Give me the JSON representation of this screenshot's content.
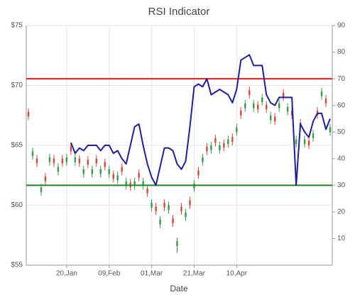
{
  "chart_data": {
    "type": "candlestick",
    "title": "RSI Indicator",
    "x_label": "Date",
    "categories": [
      null,
      null,
      null,
      null,
      null,
      null,
      null,
      null,
      null,
      "20,Jan",
      null,
      null,
      null,
      null,
      null,
      null,
      null,
      null,
      null,
      "09,Feb",
      null,
      null,
      null,
      null,
      null,
      null,
      null,
      null,
      null,
      "01,Mar",
      null,
      null,
      null,
      null,
      null,
      null,
      null,
      null,
      null,
      "21,Mar",
      null,
      null,
      null,
      null,
      null,
      null,
      null,
      null,
      null,
      "10,Apr",
      null,
      null,
      null,
      null,
      null,
      null,
      null,
      null,
      null,
      null,
      null,
      null,
      null,
      null,
      null,
      null,
      null,
      null,
      null,
      null,
      null,
      null
    ],
    "open": [
      67.8,
      64.1,
      63.9,
      61.1,
      62.4,
      63.6,
      63.9,
      62.8,
      63.9,
      63.6,
      64.9,
      63.6,
      63.9,
      62.6,
      63.8,
      62.6,
      63.9,
      62.6,
      63.6,
      62.6,
      62.6,
      62.1,
      63.2,
      61.6,
      61.9,
      61.6,
      62.7,
      61.6,
      61.4,
      59.8,
      59.9,
      58.4,
      60.2,
      59.6,
      58.9,
      56.6,
      59.9,
      59,
      60.4,
      61.4,
      62.9,
      63.6,
      64.9,
      64.6,
      65.6,
      64.6,
      65.2,
      65.1,
      65.7,
      66.1,
      67.9,
      68.1,
      69.6,
      68.1,
      68.4,
      68.6,
      68.4,
      67.1,
      67.4,
      68.1,
      69.4,
      67.8,
      67.9,
      65.1,
      66.9,
      65.1,
      65.4,
      65.6,
      67.9,
      69.1,
      68.9,
      66.1
    ],
    "high": [
      68.1,
      64.8,
      64.2,
      61.8,
      62.7,
      64.3,
      64.2,
      63.5,
      64.2,
      64.3,
      65.2,
      64.3,
      64.2,
      63.3,
      64.1,
      63.3,
      64.2,
      63.3,
      63.9,
      63.3,
      62.9,
      62.8,
      63.5,
      62.3,
      62.2,
      62.3,
      63,
      62.3,
      61.7,
      60.5,
      60.2,
      59.1,
      60.5,
      60.3,
      59.2,
      57.3,
      60.2,
      59.7,
      60.7,
      62.1,
      63.2,
      64.3,
      65.2,
      65.3,
      65.9,
      65.3,
      65.5,
      65.8,
      66,
      66.8,
      68.2,
      68.8,
      69.9,
      68.8,
      68.7,
      69.3,
      68.7,
      67.8,
      67.7,
      68.8,
      69.7,
      68.5,
      68.2,
      65.8,
      67.2,
      65.8,
      65.7,
      66.3,
      68.2,
      69.8,
      69.2,
      66.8
    ],
    "low": [
      67.1,
      63.8,
      63.2,
      60.8,
      61.7,
      63.3,
      63.2,
      62.5,
      63.2,
      63.3,
      64.2,
      63.3,
      63.2,
      62.3,
      63.1,
      62.3,
      63.2,
      62.3,
      62.9,
      62.3,
      61.9,
      61.8,
      62.5,
      61.3,
      61.2,
      61.3,
      62,
      61.3,
      60.7,
      59.5,
      59.2,
      58.1,
      59.5,
      59.3,
      58.2,
      56,
      59.2,
      58.7,
      59.7,
      61.1,
      62.2,
      63.3,
      64.2,
      64.3,
      64.9,
      64.3,
      64.5,
      64.8,
      65,
      65.8,
      67.2,
      67.8,
      68.9,
      67.8,
      67.7,
      68.3,
      67.7,
      66.8,
      66.7,
      67.8,
      68.7,
      67.5,
      67.2,
      64.8,
      66.2,
      64.8,
      64.7,
      65.3,
      67.2,
      68.8,
      68.2,
      65.8
    ],
    "close": [
      67.4,
      64.5,
      63.5,
      61.5,
      62,
      64,
      63.5,
      63.2,
      63.5,
      64,
      64.5,
      64,
      63.5,
      63,
      63.4,
      63,
      63.5,
      63,
      63.2,
      63,
      62.2,
      62.5,
      62.8,
      62,
      61.5,
      62,
      62.3,
      62,
      61,
      60.2,
      59.5,
      58.8,
      59.8,
      60,
      58.5,
      57,
      59.5,
      59.4,
      60,
      61.8,
      62.5,
      64,
      64.5,
      65,
      65.2,
      65,
      64.8,
      65.5,
      65.3,
      66.5,
      67.5,
      68.5,
      69.2,
      68.5,
      68,
      69,
      68,
      67.5,
      67,
      68.5,
      69,
      68.2,
      67.5,
      65.5,
      66.5,
      65.5,
      65,
      66,
      67.5,
      69.5,
      68.5,
      66.5
    ],
    "up_color": "#3a9a4a",
    "down_color": "#d24a3c",
    "rsi": {
      "color": "#1f1f9a",
      "axis": "y2",
      "values": [
        null,
        null,
        null,
        null,
        null,
        null,
        null,
        null,
        null,
        null,
        46,
        42,
        44,
        43,
        45,
        45,
        45,
        43,
        45,
        45,
        42,
        43,
        40,
        38,
        45,
        52,
        53,
        45,
        38,
        33,
        30,
        37,
        44,
        44,
        43,
        38,
        36,
        39,
        52,
        67,
        68,
        67,
        70,
        64,
        65,
        66,
        65,
        64,
        61,
        66,
        77,
        78,
        79,
        75,
        75,
        75,
        64,
        61,
        60,
        63,
        63,
        63,
        63,
        30,
        53,
        50,
        48,
        54,
        57,
        57,
        51,
        55
      ]
    },
    "reference_lines": [
      {
        "value": 70,
        "color": "#e01b1b",
        "axis": "y2"
      },
      {
        "value": 30,
        "color": "#1e8a1e",
        "axis": "y2"
      }
    ],
    "ylim": [
      55,
      75
    ],
    "yticks": [
      {
        "value": 55,
        "label": "$55"
      },
      {
        "value": 60,
        "label": "$60"
      },
      {
        "value": 65,
        "label": "$65"
      },
      {
        "value": 70,
        "label": "$70"
      },
      {
        "value": 75,
        "label": "$75"
      }
    ],
    "y2lim": [
      0,
      90
    ],
    "y2ticks": [
      10,
      20,
      30,
      40,
      50,
      60,
      70,
      80,
      90
    ],
    "grid": true
  }
}
